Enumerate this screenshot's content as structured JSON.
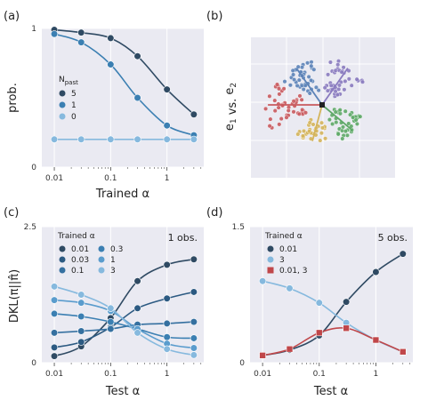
{
  "panels": {
    "a": "(a)",
    "b": "(b)",
    "c": "(c)",
    "d": "(d)"
  },
  "colors": {
    "dark": "#2f4a63",
    "mid": "#3b7fb2",
    "light": "#86b9de",
    "red": "#c0474a",
    "bg": "#eaeaf2",
    "blue_cluster": "#5c83b8",
    "purple_cluster": "#8a7bbf",
    "red_cluster": "#c95a5e",
    "yellow_cluster": "#d4b45b",
    "green_cluster": "#5ea867"
  },
  "chart_data": [
    {
      "id": "a",
      "type": "line",
      "xscale": "log",
      "xlim": [
        0.006,
        4.5
      ],
      "ylim": [
        0,
        1
      ],
      "xticks": [
        "0.01",
        "0.1",
        "1"
      ],
      "yticks": [
        "0",
        "1"
      ],
      "xlabel": "Trained α",
      "ylabel": "prob.",
      "legend_title": "N_past",
      "grid": true,
      "x": [
        0.01,
        0.03,
        0.1,
        0.3,
        1,
        3
      ],
      "series": [
        {
          "name": "5",
          "color": "#2f4a63",
          "values": [
            0.99,
            0.97,
            0.93,
            0.8,
            0.56,
            0.38
          ]
        },
        {
          "name": "1",
          "color": "#3b7fb2",
          "values": [
            0.96,
            0.9,
            0.74,
            0.5,
            0.3,
            0.23
          ]
        },
        {
          "name": "0",
          "color": "#86b9de",
          "values": [
            0.2,
            0.2,
            0.2,
            0.2,
            0.2,
            0.2
          ]
        }
      ]
    },
    {
      "id": "b",
      "type": "scatter",
      "ylabel": "e1 vs. e2",
      "grid": true
    },
    {
      "id": "c",
      "type": "line",
      "xscale": "log",
      "xlim": [
        0.006,
        4.5
      ],
      "ylim": [
        0,
        2.5
      ],
      "xticks": [
        "0.01",
        "0.1",
        "1"
      ],
      "yticks": [
        "0",
        "2.5"
      ],
      "xlabel": "Test α",
      "ylabel": "DKL(π||π̂)",
      "legend_title": "Trained α",
      "annotation": "1 obs.",
      "grid": true,
      "x": [
        0.01,
        0.03,
        0.1,
        0.3,
        1,
        3
      ],
      "series": [
        {
          "name": "0.01",
          "color": "#2f4a63",
          "values": [
            0.12,
            0.3,
            0.82,
            1.5,
            1.8,
            1.9
          ]
        },
        {
          "name": "0.03",
          "color": "#2c5a82",
          "values": [
            0.28,
            0.38,
            0.65,
            1.0,
            1.18,
            1.3
          ]
        },
        {
          "name": "0.1",
          "color": "#3570a0",
          "values": [
            0.55,
            0.58,
            0.62,
            0.7,
            0.72,
            0.75
          ]
        },
        {
          "name": "0.3",
          "color": "#3b7fb2",
          "values": [
            0.9,
            0.85,
            0.75,
            0.62,
            0.47,
            0.45
          ]
        },
        {
          "name": "1",
          "color": "#5a9ccd",
          "values": [
            1.15,
            1.1,
            0.95,
            0.62,
            0.35,
            0.27
          ]
        },
        {
          "name": "3",
          "color": "#86b9de",
          "values": [
            1.4,
            1.25,
            1.0,
            0.55,
            0.25,
            0.14
          ]
        }
      ]
    },
    {
      "id": "d",
      "type": "line",
      "xscale": "log",
      "xlim": [
        0.006,
        4.5
      ],
      "ylim": [
        0,
        1.5
      ],
      "xticks": [
        "0.01",
        "0.1",
        "1"
      ],
      "yticks": [
        "0",
        "1.5"
      ],
      "xlabel": "Test α",
      "legend_title": "Trained α",
      "annotation": "5 obs.",
      "grid": true,
      "x": [
        0.01,
        0.03,
        0.1,
        0.3,
        1,
        3
      ],
      "series": [
        {
          "name": "0.01",
          "color": "#2f4a63",
          "marker": "circle",
          "values": [
            0.08,
            0.14,
            0.3,
            0.67,
            1.0,
            1.2
          ]
        },
        {
          "name": "3",
          "color": "#86b9de",
          "marker": "circle",
          "values": [
            0.9,
            0.82,
            0.66,
            0.44,
            0.25,
            0.12
          ]
        },
        {
          "name": "0.01, 3",
          "color": "#c0474a",
          "marker": "square",
          "values": [
            0.08,
            0.15,
            0.33,
            0.38,
            0.25,
            0.12
          ]
        }
      ]
    }
  ]
}
